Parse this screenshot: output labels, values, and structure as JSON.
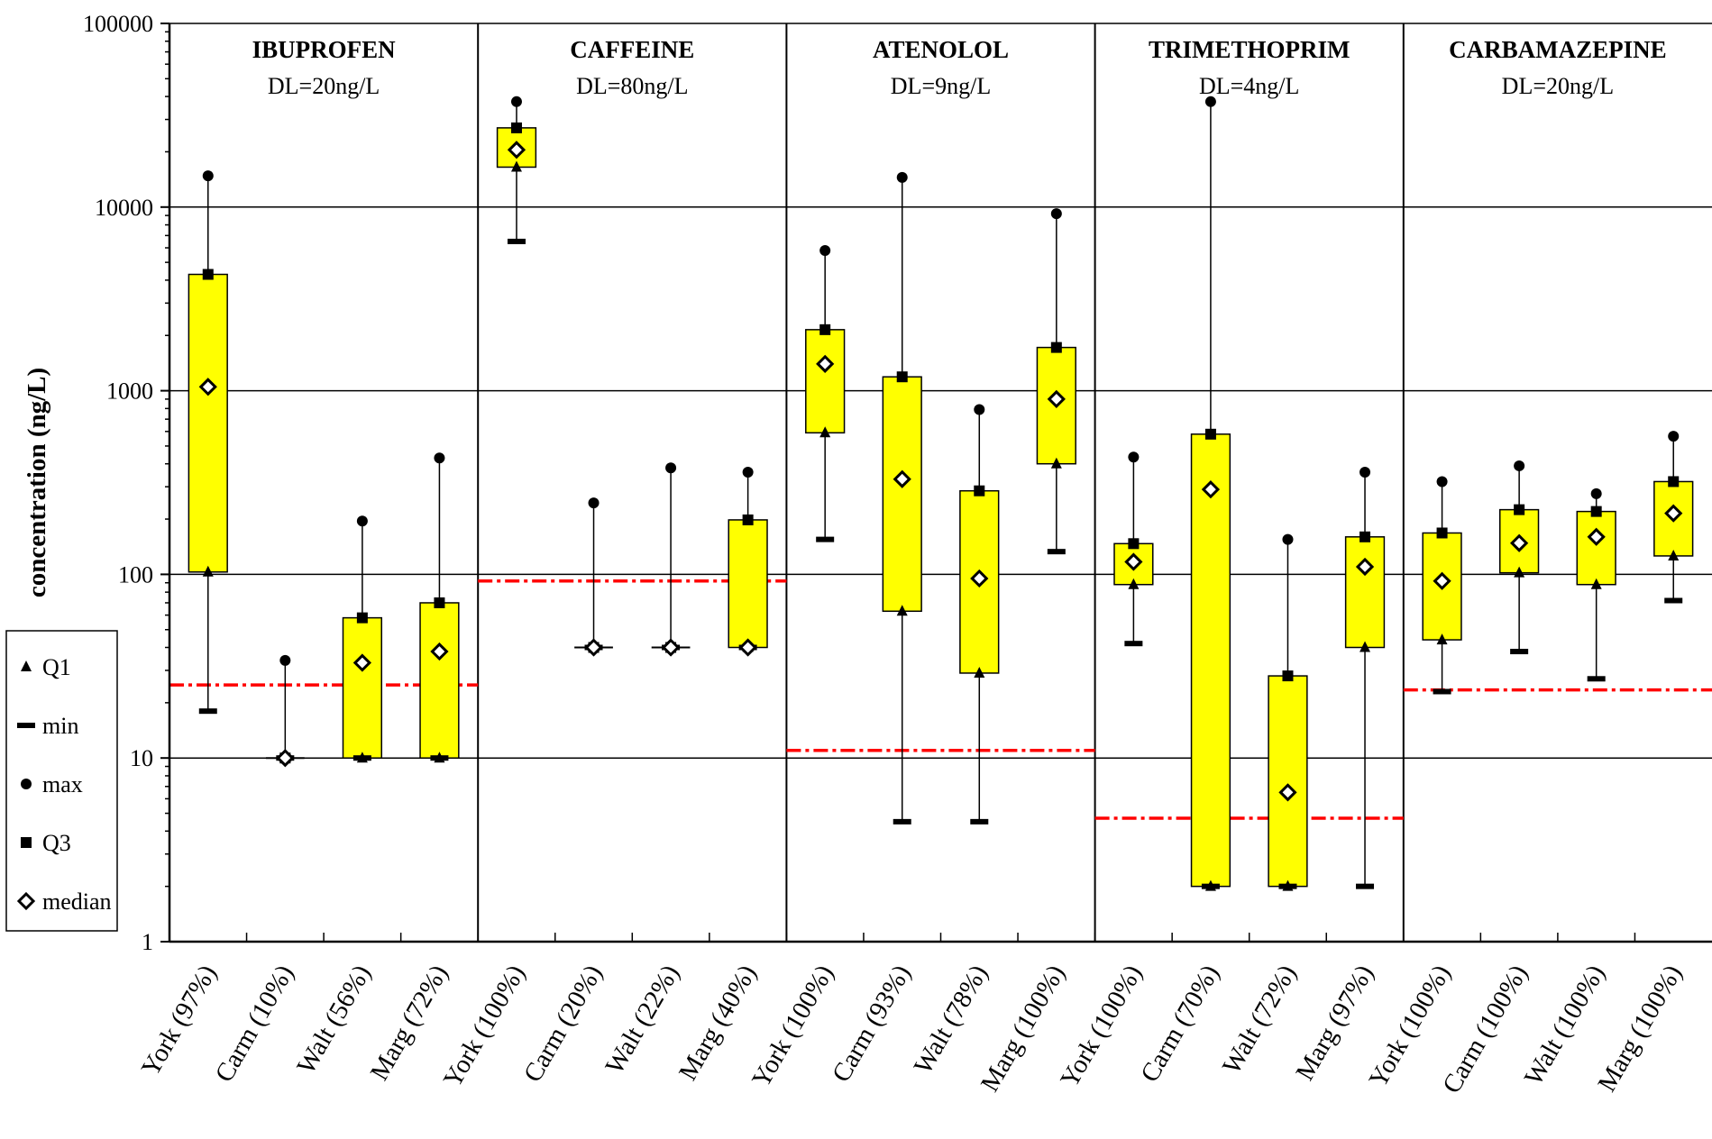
{
  "chart_data": {
    "type": "box",
    "ylabel": "concentration (ng/L)",
    "yscale": "log",
    "ylim": [
      1,
      100000
    ],
    "yticks": [
      "1",
      "10",
      "100",
      "1000",
      "10000",
      "100000"
    ],
    "categories": [
      "York (97%)",
      "Carm (10%)",
      "Walt (56%)",
      "Marg (72%)",
      "York (100%)",
      "Carm (20%)",
      "Walt (22%)",
      "Marg (40%)",
      "York (100%)",
      "Carm (93%)",
      "Walt (78%)",
      "Marg (100%)",
      "York (100%)",
      "Carm (70%)",
      "Walt (72%)",
      "Marg (97%)",
      "York (100%)",
      "Carm (100%)",
      "Walt (100%)",
      "Marg (100%)"
    ],
    "groups": [
      {
        "name": "IBUPROFEN",
        "detection_limit_label": "DL=20ng/L",
        "dl_line": 25,
        "boxes": [
          {
            "min": 18,
            "q1": 103,
            "median": 1050,
            "q3": 4300,
            "max": 14800
          },
          {
            "min": 10,
            "q1": 10,
            "median": 10,
            "q3": 10,
            "max": 34
          },
          {
            "min": 10,
            "q1": 10,
            "median": 33,
            "q3": 58,
            "max": 195
          },
          {
            "min": 10,
            "q1": 10,
            "median": 38,
            "q3": 70,
            "max": 430
          }
        ]
      },
      {
        "name": "CAFFEINE",
        "detection_limit_label": "DL=80ng/L",
        "dl_line": 92,
        "boxes": [
          {
            "min": 6500,
            "q1": 16500,
            "median": 20500,
            "q3": 27000,
            "max": 37500
          },
          {
            "min": 40,
            "q1": 40,
            "median": 40,
            "q3": 40,
            "max": 245
          },
          {
            "min": 40,
            "q1": 40,
            "median": 40,
            "q3": 40,
            "max": 380
          },
          {
            "min": 40,
            "q1": 40,
            "median": 40,
            "q3": 198,
            "max": 360
          }
        ]
      },
      {
        "name": "ATENOLOL",
        "detection_limit_label": "DL=9ng/L",
        "dl_line": 11,
        "boxes": [
          {
            "min": 155,
            "q1": 590,
            "median": 1400,
            "q3": 2150,
            "max": 5800
          },
          {
            "min": 4.5,
            "q1": 63,
            "median": 330,
            "q3": 1190,
            "max": 14500
          },
          {
            "min": 4.5,
            "q1": 29,
            "median": 95,
            "q3": 285,
            "max": 790
          },
          {
            "min": 133,
            "q1": 400,
            "median": 900,
            "q3": 1720,
            "max": 9200
          }
        ]
      },
      {
        "name": "TRIMETHOPRIM",
        "detection_limit_label": "DL=4ng/L",
        "dl_line": 4.7,
        "boxes": [
          {
            "min": 42,
            "q1": 88,
            "median": 117,
            "q3": 147,
            "max": 435
          },
          {
            "min": 2,
            "q1": 2,
            "median": 290,
            "q3": 580,
            "max": 37500
          },
          {
            "min": 2,
            "q1": 2,
            "median": 6.5,
            "q3": 28,
            "max": 155
          },
          {
            "min": 2,
            "q1": 40,
            "median": 110,
            "q3": 160,
            "max": 360
          }
        ]
      },
      {
        "name": "CARBAMAZEPINE",
        "detection_limit_label": "DL=20ng/L",
        "dl_line": 23.5,
        "boxes": [
          {
            "min": 23,
            "q1": 44,
            "median": 92,
            "q3": 168,
            "max": 320
          },
          {
            "min": 38,
            "q1": 102,
            "median": 148,
            "q3": 225,
            "max": 390
          },
          {
            "min": 27,
            "q1": 88,
            "median": 160,
            "q3": 220,
            "max": 275
          },
          {
            "min": 72,
            "q1": 126,
            "median": 215,
            "q3": 320,
            "max": 565
          }
        ]
      }
    ],
    "legend": {
      "placement": "left",
      "items": [
        {
          "marker": "triangle",
          "label": "Q1"
        },
        {
          "marker": "dash",
          "label": "min"
        },
        {
          "marker": "circle",
          "label": "max"
        },
        {
          "marker": "square",
          "label": "Q3"
        },
        {
          "marker": "diamond",
          "label": "median"
        }
      ]
    },
    "colors": {
      "box_fill": "#ffff00",
      "detection_line": "#ff0000",
      "gridline": "#000000"
    },
    "grid": true
  }
}
